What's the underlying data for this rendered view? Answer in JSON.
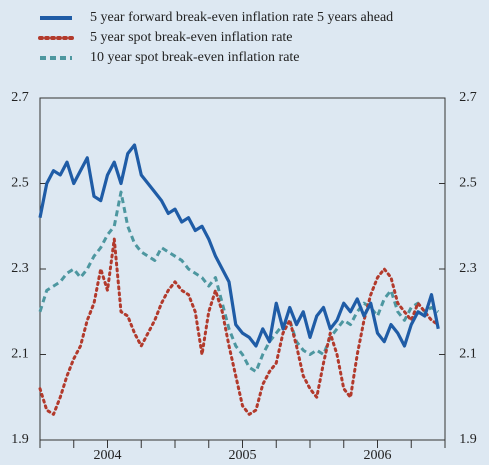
{
  "chart_data": {
    "type": "line",
    "legend": "top",
    "xlim": [
      2004,
      2007
    ],
    "xticks": [
      {
        "value": 2004.5,
        "label": "2004"
      },
      {
        "value": 2005.5,
        "label": "2005"
      },
      {
        "value": 2006.5,
        "label": "2006"
      }
    ],
    "xminorticks": [
      2004,
      2004.25,
      2004.5,
      2004.75,
      2005,
      2005.25,
      2005.5,
      2005.75,
      2006,
      2006.25,
      2006.5,
      2006.75,
      2007
    ],
    "ylim": [
      1.9,
      2.7
    ],
    "yticks": [
      1.9,
      2.1,
      2.3,
      2.5,
      2.7
    ],
    "y2lim": [
      1.9,
      2.7
    ],
    "y2ticks": [
      1.9,
      2.1,
      2.3,
      2.5,
      2.7
    ],
    "x": [
      2004,
      2004.05,
      2004.1,
      2004.15,
      2004.2,
      2004.25,
      2004.3,
      2004.35,
      2004.4,
      2004.45,
      2004.5,
      2004.55,
      2004.6,
      2004.65,
      2004.7,
      2004.75,
      2004.8,
      2004.85,
      2004.9,
      2004.95,
      2005,
      2005.05,
      2005.1,
      2005.15,
      2005.2,
      2005.25,
      2005.3,
      2005.35,
      2005.4,
      2005.45,
      2005.5,
      2005.55,
      2005.6,
      2005.65,
      2005.7,
      2005.75,
      2005.8,
      2005.85,
      2005.9,
      2005.95,
      2006,
      2006.05,
      2006.1,
      2006.15,
      2006.2,
      2006.25,
      2006.3,
      2006.35,
      2006.4,
      2006.45,
      2006.5,
      2006.55,
      2006.6,
      2006.65,
      2006.7,
      2006.75,
      2006.8,
      2006.85,
      2006.9,
      2006.95
    ],
    "series": [
      {
        "name": "5 year forward break-even inflation rate 5 years ahead",
        "color": "#1f5ca6",
        "style": "solid",
        "values": [
          2.42,
          2.5,
          2.53,
          2.52,
          2.55,
          2.5,
          2.53,
          2.56,
          2.47,
          2.46,
          2.52,
          2.55,
          2.5,
          2.57,
          2.59,
          2.52,
          2.5,
          2.48,
          2.46,
          2.43,
          2.44,
          2.41,
          2.42,
          2.39,
          2.4,
          2.37,
          2.33,
          2.3,
          2.27,
          2.17,
          2.15,
          2.14,
          2.12,
          2.16,
          2.13,
          2.22,
          2.16,
          2.21,
          2.17,
          2.2,
          2.14,
          2.19,
          2.21,
          2.16,
          2.18,
          2.22,
          2.2,
          2.23,
          2.19,
          2.22,
          2.15,
          2.13,
          2.17,
          2.15,
          2.12,
          2.17,
          2.2,
          2.19,
          2.24,
          2.16
        ]
      },
      {
        "name": "5 year spot break-even inflation rate",
        "color": "#b23a2c",
        "style": "dotted",
        "values": [
          2.02,
          1.97,
          1.96,
          2.0,
          2.05,
          2.09,
          2.12,
          2.18,
          2.22,
          2.3,
          2.25,
          2.37,
          2.2,
          2.19,
          2.15,
          2.12,
          2.15,
          2.18,
          2.22,
          2.25,
          2.27,
          2.25,
          2.24,
          2.2,
          2.1,
          2.2,
          2.25,
          2.2,
          2.12,
          2.05,
          1.98,
          1.96,
          1.97,
          2.03,
          2.06,
          2.08,
          2.15,
          2.18,
          2.12,
          2.05,
          2.02,
          2.0,
          2.08,
          2.15,
          2.1,
          2.02,
          2.0,
          2.1,
          2.18,
          2.24,
          2.28,
          2.3,
          2.28,
          2.22,
          2.2,
          2.18,
          2.22,
          2.2,
          2.18,
          2.17
        ]
      },
      {
        "name": "10 year spot break-even inflation rate",
        "color": "#4d97a0",
        "style": "dashed",
        "values": [
          2.2,
          2.25,
          2.26,
          2.27,
          2.29,
          2.3,
          2.28,
          2.3,
          2.33,
          2.35,
          2.38,
          2.4,
          2.48,
          2.4,
          2.36,
          2.34,
          2.33,
          2.32,
          2.35,
          2.34,
          2.33,
          2.32,
          2.3,
          2.29,
          2.28,
          2.26,
          2.28,
          2.22,
          2.16,
          2.12,
          2.1,
          2.07,
          2.06,
          2.1,
          2.13,
          2.15,
          2.17,
          2.18,
          2.13,
          2.11,
          2.1,
          2.11,
          2.1,
          2.14,
          2.16,
          2.18,
          2.17,
          2.2,
          2.22,
          2.21,
          2.19,
          2.23,
          2.25,
          2.2,
          2.18,
          2.21,
          2.22,
          2.2,
          2.21,
          2.2
        ]
      }
    ]
  }
}
